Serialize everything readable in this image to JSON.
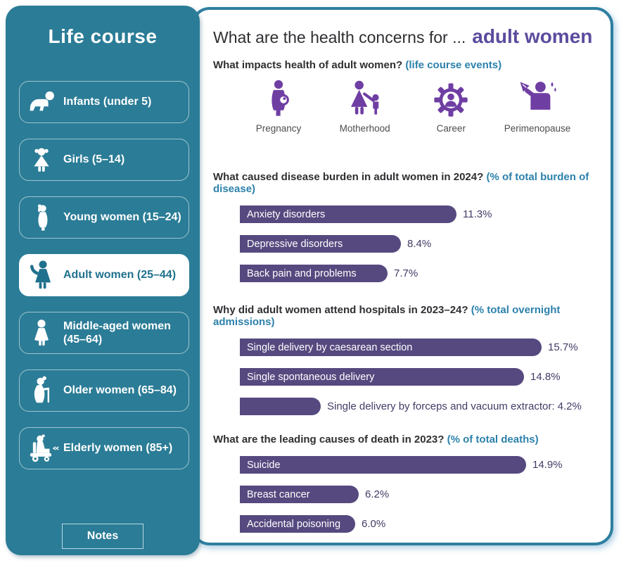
{
  "sidebar": {
    "title": "Life course",
    "items": [
      {
        "label": "Infants (under 5)",
        "icon": "baby-crawling-icon",
        "selected": false
      },
      {
        "label": "Girls (5–14)",
        "icon": "girl-icon",
        "selected": false
      },
      {
        "label": "Young women (15–24)",
        "icon": "young-woman-icon",
        "selected": false
      },
      {
        "label": "Adult women (25–44)",
        "icon": "adult-woman-icon",
        "selected": true
      },
      {
        "label": "Middle-aged women (45–64)",
        "icon": "middle-aged-woman-icon",
        "selected": false
      },
      {
        "label": "Older women (65–84)",
        "icon": "older-woman-cane-icon",
        "selected": false
      },
      {
        "label": "Elderly women (85+)",
        "icon": "elderly-woman-scooter-icon",
        "selected": false
      }
    ],
    "notes_button": "Notes"
  },
  "header": {
    "title_prefix": "What are the health concerns for ...",
    "title_highlight": "adult women"
  },
  "events_section": {
    "question": "What impacts health of adult women?",
    "qualifier": "(life course events)",
    "events": [
      {
        "label": "Pregnancy",
        "icon": "pregnancy-icon"
      },
      {
        "label": "Motherhood",
        "icon": "motherhood-icon"
      },
      {
        "label": "Career",
        "icon": "career-icon"
      },
      {
        "label": "Perimenopause",
        "icon": "perimenopause-icon"
      }
    ]
  },
  "chart_data": [
    {
      "type": "bar",
      "orientation": "horizontal",
      "title": "What caused disease burden in adult women in 2024?",
      "qualifier": "(% of total burden of disease)",
      "categories": [
        "Anxiety disorders",
        "Depressive disorders",
        "Back pain and problems"
      ],
      "values": [
        11.3,
        8.4,
        7.7
      ],
      "bar_labels": [
        {
          "inside": "Anxiety disorders",
          "outside": "11.3%"
        },
        {
          "inside": "Depressive disorders",
          "outside": "8.4%"
        },
        {
          "inside": "Back pain and problems",
          "outside": "7.7%"
        }
      ],
      "unit": "% of total burden of disease",
      "xlim": [
        0,
        19
      ],
      "axis": "hidden",
      "legend": "none"
    },
    {
      "type": "bar",
      "orientation": "horizontal",
      "title": "Why did adult women attend hospitals in 2023–24?",
      "qualifier": "(% total overnight admissions)",
      "categories": [
        "Single delivery by caesarean section",
        "Single spontaneous delivery",
        "Single delivery by forceps and vacuum extractor"
      ],
      "values": [
        15.7,
        14.8,
        4.2
      ],
      "bar_labels": [
        {
          "inside": "Single delivery by caesarean section",
          "outside": "15.7%"
        },
        {
          "inside": "Single spontaneous delivery",
          "outside": "14.8%"
        },
        {
          "inside": "",
          "outside": "Single delivery by forceps and vacuum extractor: 4.2%"
        }
      ],
      "unit": "% total overnight admissions",
      "xlim": [
        0,
        19
      ],
      "axis": "hidden",
      "legend": "none"
    },
    {
      "type": "bar",
      "orientation": "horizontal",
      "title": "What are the leading causes of death in 2023?",
      "qualifier": "(% of total deaths)",
      "categories": [
        "Suicide",
        "Breast cancer",
        "Accidental poisoning"
      ],
      "values": [
        14.9,
        6.2,
        6.0
      ],
      "bar_labels": [
        {
          "inside": "Suicide",
          "outside": "14.9%"
        },
        {
          "inside": "Breast cancer",
          "outside": "6.2%"
        },
        {
          "inside": "Accidental poisoning",
          "outside": "6.0%"
        }
      ],
      "unit": "% of total deaths",
      "xlim": [
        0,
        19
      ],
      "axis": "hidden",
      "legend": "none"
    }
  ],
  "colors": {
    "sidebar_bg": "#2B7C96",
    "panel_border": "#2E7F9F",
    "bar_fill": "#56497F",
    "value_text": "#413C66",
    "title_highlight": "#5C4B9E",
    "qualifier_text": "#2C81AB",
    "event_icon": "#6F3EA3",
    "heading_text": "#2F2F33"
  }
}
